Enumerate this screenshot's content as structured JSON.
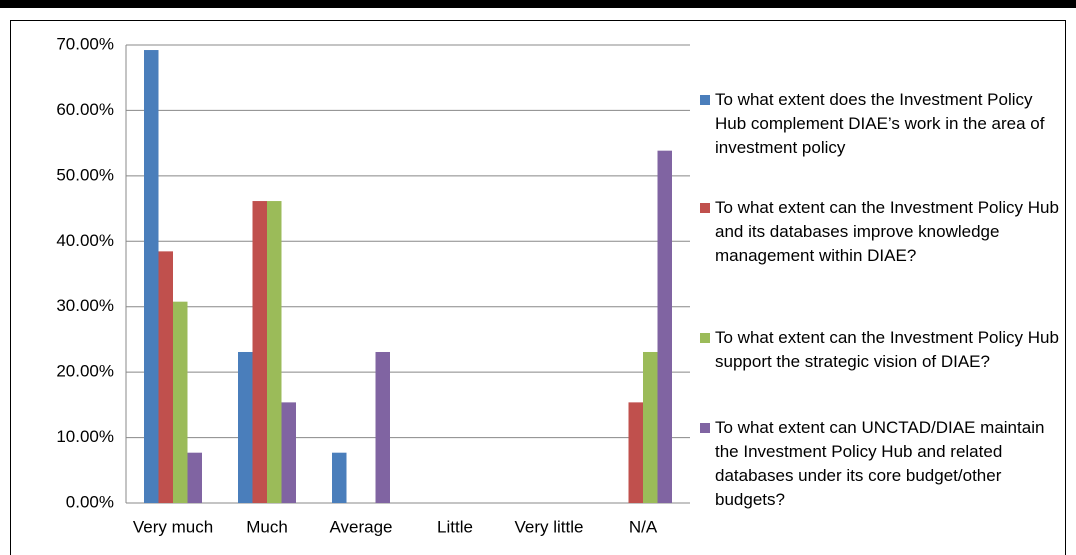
{
  "chart_data": {
    "type": "bar",
    "categories": [
      "Very much",
      "Much",
      "Average",
      "Little",
      "Very little",
      "N/A"
    ],
    "series": [
      {
        "name": "To what extent does the Investment Policy Hub complement DIAE’s work in the area of investment policy",
        "color": "#4a7ebb",
        "values": [
          69.23,
          23.08,
          7.69,
          0,
          0,
          0
        ]
      },
      {
        "name": "To what extent can the Investment Policy Hub and its databases improve knowledge management within DIAE?",
        "color": "#c0504d",
        "values": [
          38.46,
          46.15,
          0,
          0,
          0,
          15.38
        ]
      },
      {
        "name": "To what extent can the Investment Policy Hub support the strategic vision of DIAE?",
        "color": "#9bbb59",
        "values": [
          30.77,
          46.15,
          0,
          0,
          0,
          23.08
        ]
      },
      {
        "name": "To what extent can UNCTAD/DIAE maintain the Investment Policy Hub and related databases under its core budget/other budgets?",
        "color": "#8064a2",
        "values": [
          7.69,
          15.38,
          23.08,
          0,
          0,
          53.85
        ]
      }
    ],
    "ylim": [
      0,
      70
    ],
    "yticks": [
      {
        "value": 0,
        "label": "0.00%"
      },
      {
        "value": 10,
        "label": "10.00%"
      },
      {
        "value": 20,
        "label": "20.00%"
      },
      {
        "value": 30,
        "label": "30.00%"
      },
      {
        "value": 40,
        "label": "40.00%"
      },
      {
        "value": 50,
        "label": "50.00%"
      },
      {
        "value": 60,
        "label": "60.00%"
      },
      {
        "value": 70,
        "label": "70.00%"
      }
    ],
    "grid": true,
    "legend": "right"
  }
}
